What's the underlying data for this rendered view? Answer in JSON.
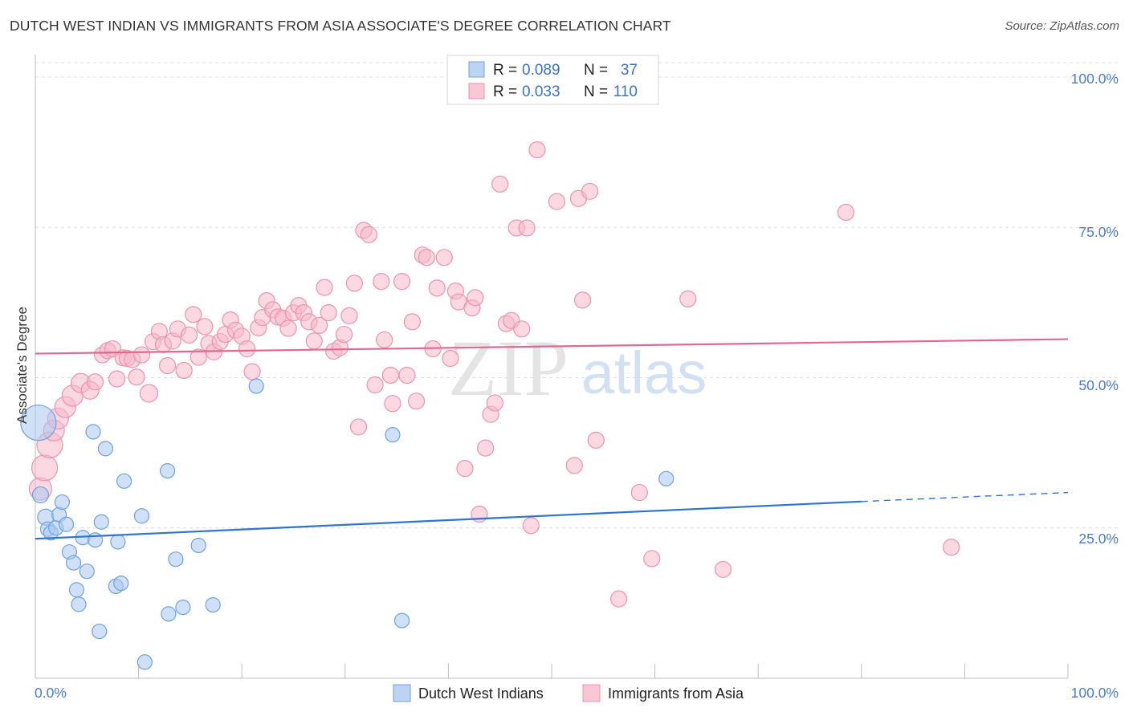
{
  "title": "DUTCH WEST INDIAN VS IMMIGRANTS FROM ASIA ASSOCIATE'S DEGREE CORRELATION CHART",
  "source": "Source: ZipAtlas.com",
  "watermark": {
    "zip": "ZIP",
    "atlas": "atlas"
  },
  "colors": {
    "blue_fill": "#a9c8f0",
    "blue_stroke": "#6fa1df",
    "blue_line": "#2f74d0",
    "pink_fill": "#f7b8cb",
    "pink_stroke": "#eb93ae",
    "pink_line": "#e2688f",
    "axis_label": "#4a7cc9",
    "grid": "#dcdcdc"
  },
  "chart_data": {
    "type": "scatter",
    "xlabel": "",
    "ylabel": "Associate's Degree",
    "xlim": [
      0,
      100
    ],
    "ylim": [
      0,
      100
    ],
    "x_tick_labels": [
      "0.0%",
      "100.0%"
    ],
    "y_ticks": [
      25,
      50,
      75,
      100
    ],
    "y_tick_labels": [
      "25.0%",
      "50.0%",
      "75.0%",
      "100.0%"
    ],
    "grid": true,
    "legend_position": "top-center",
    "stats": [
      {
        "r_label": "R = ",
        "r_value": "0.089",
        "n_label": "N = ",
        "n_value": "37"
      },
      {
        "r_label": "R = ",
        "r_value": "0.033",
        "n_label": "N = ",
        "n_value": "110"
      }
    ],
    "series": [
      {
        "name": "Dutch West Indians",
        "color": "blue",
        "trend": {
          "x0": 0,
          "y0": 23.2,
          "x1": 80,
          "y1": 29.4,
          "dash_to_x": 100,
          "dash_to_y": 30.9
        },
        "points": [
          {
            "x": 0.3,
            "y": 42.5,
            "s": 22
          },
          {
            "x": 0.5,
            "y": 30.5,
            "s": 10
          },
          {
            "x": 1.0,
            "y": 26.8,
            "s": 10
          },
          {
            "x": 1.2,
            "y": 24.8,
            "s": 9
          },
          {
            "x": 1.5,
            "y": 24.2,
            "s": 9
          },
          {
            "x": 2.0,
            "y": 25.0,
            "s": 9
          },
          {
            "x": 2.3,
            "y": 27.2,
            "s": 9
          },
          {
            "x": 2.6,
            "y": 29.3,
            "s": 9
          },
          {
            "x": 3.0,
            "y": 25.6,
            "s": 9
          },
          {
            "x": 3.3,
            "y": 21.0,
            "s": 9
          },
          {
            "x": 3.7,
            "y": 19.2,
            "s": 9
          },
          {
            "x": 4.0,
            "y": 14.7,
            "s": 9
          },
          {
            "x": 4.2,
            "y": 12.3,
            "s": 9
          },
          {
            "x": 4.6,
            "y": 23.4,
            "s": 9
          },
          {
            "x": 5.0,
            "y": 17.8,
            "s": 9
          },
          {
            "x": 5.6,
            "y": 41.0,
            "s": 9
          },
          {
            "x": 5.8,
            "y": 23.0,
            "s": 9
          },
          {
            "x": 6.2,
            "y": 7.8,
            "s": 9
          },
          {
            "x": 6.4,
            "y": 26.0,
            "s": 9
          },
          {
            "x": 6.8,
            "y": 38.2,
            "s": 9
          },
          {
            "x": 7.8,
            "y": 15.3,
            "s": 9
          },
          {
            "x": 8.0,
            "y": 22.7,
            "s": 9
          },
          {
            "x": 8.3,
            "y": 15.8,
            "s": 9
          },
          {
            "x": 8.6,
            "y": 32.8,
            "s": 9
          },
          {
            "x": 10.3,
            "y": 27.0,
            "s": 9
          },
          {
            "x": 10.6,
            "y": 2.7,
            "s": 9
          },
          {
            "x": 12.8,
            "y": 34.5,
            "s": 9
          },
          {
            "x": 12.9,
            "y": 10.7,
            "s": 9
          },
          {
            "x": 13.6,
            "y": 19.8,
            "s": 9
          },
          {
            "x": 14.3,
            "y": 11.8,
            "s": 9
          },
          {
            "x": 15.8,
            "y": 22.1,
            "s": 9
          },
          {
            "x": 17.2,
            "y": 12.2,
            "s": 9
          },
          {
            "x": 21.4,
            "y": 48.6,
            "s": 9
          },
          {
            "x": 34.6,
            "y": 40.5,
            "s": 9
          },
          {
            "x": 35.5,
            "y": 9.6,
            "s": 9
          },
          {
            "x": 61.1,
            "y": 33.2,
            "s": 9
          }
        ]
      },
      {
        "name": "Immigrants from Asia",
        "color": "pink",
        "trend": {
          "x0": 0,
          "y0": 54.0,
          "x1": 100,
          "y1": 56.4
        },
        "points": [
          {
            "x": 0.5,
            "y": 31.5,
            "s": 14
          },
          {
            "x": 0.9,
            "y": 35.0,
            "s": 16
          },
          {
            "x": 1.4,
            "y": 38.8,
            "s": 16
          },
          {
            "x": 1.8,
            "y": 41.2,
            "s": 13
          },
          {
            "x": 2.2,
            "y": 43.2,
            "s": 13
          },
          {
            "x": 2.9,
            "y": 45.1,
            "s": 13
          },
          {
            "x": 3.6,
            "y": 47.0,
            "s": 13
          },
          {
            "x": 4.4,
            "y": 49.1,
            "s": 12
          },
          {
            "x": 5.3,
            "y": 47.9,
            "s": 11
          },
          {
            "x": 5.8,
            "y": 49.3,
            "s": 10
          },
          {
            "x": 6.5,
            "y": 53.8,
            "s": 10
          },
          {
            "x": 7.0,
            "y": 54.5,
            "s": 10
          },
          {
            "x": 7.5,
            "y": 54.8,
            "s": 10
          },
          {
            "x": 7.9,
            "y": 49.8,
            "s": 10
          },
          {
            "x": 8.5,
            "y": 53.3,
            "s": 10
          },
          {
            "x": 8.9,
            "y": 53.2,
            "s": 10
          },
          {
            "x": 9.4,
            "y": 53.0,
            "s": 10
          },
          {
            "x": 9.8,
            "y": 50.1,
            "s": 10
          },
          {
            "x": 10.3,
            "y": 53.8,
            "s": 10
          },
          {
            "x": 11.0,
            "y": 47.4,
            "s": 11
          },
          {
            "x": 11.4,
            "y": 56.0,
            "s": 10
          },
          {
            "x": 12.0,
            "y": 57.7,
            "s": 10
          },
          {
            "x": 12.4,
            "y": 55.5,
            "s": 10
          },
          {
            "x": 12.8,
            "y": 52.0,
            "s": 10
          },
          {
            "x": 13.3,
            "y": 56.1,
            "s": 10
          },
          {
            "x": 13.8,
            "y": 58.1,
            "s": 10
          },
          {
            "x": 14.4,
            "y": 51.2,
            "s": 10
          },
          {
            "x": 14.9,
            "y": 57.1,
            "s": 10
          },
          {
            "x": 15.3,
            "y": 60.5,
            "s": 10
          },
          {
            "x": 15.8,
            "y": 53.4,
            "s": 10
          },
          {
            "x": 16.4,
            "y": 58.5,
            "s": 10
          },
          {
            "x": 16.8,
            "y": 55.7,
            "s": 10
          },
          {
            "x": 17.3,
            "y": 54.3,
            "s": 10
          },
          {
            "x": 17.9,
            "y": 56.0,
            "s": 10
          },
          {
            "x": 18.4,
            "y": 57.2,
            "s": 10
          },
          {
            "x": 18.9,
            "y": 59.6,
            "s": 10
          },
          {
            "x": 19.4,
            "y": 57.9,
            "s": 10
          },
          {
            "x": 20.0,
            "y": 56.9,
            "s": 10
          },
          {
            "x": 20.5,
            "y": 54.8,
            "s": 10
          },
          {
            "x": 21.0,
            "y": 51.0,
            "s": 10
          },
          {
            "x": 21.6,
            "y": 58.3,
            "s": 10
          },
          {
            "x": 22.0,
            "y": 60.0,
            "s": 10
          },
          {
            "x": 22.4,
            "y": 62.8,
            "s": 10
          },
          {
            "x": 23.0,
            "y": 61.3,
            "s": 10
          },
          {
            "x": 23.5,
            "y": 60.1,
            "s": 10
          },
          {
            "x": 24.0,
            "y": 59.9,
            "s": 10
          },
          {
            "x": 24.5,
            "y": 58.2,
            "s": 10
          },
          {
            "x": 25.0,
            "y": 60.8,
            "s": 10
          },
          {
            "x": 25.5,
            "y": 62.0,
            "s": 10
          },
          {
            "x": 26.0,
            "y": 60.8,
            "s": 10
          },
          {
            "x": 26.5,
            "y": 59.3,
            "s": 10
          },
          {
            "x": 27.0,
            "y": 56.1,
            "s": 10
          },
          {
            "x": 27.5,
            "y": 58.7,
            "s": 10
          },
          {
            "x": 28.0,
            "y": 65.0,
            "s": 10
          },
          {
            "x": 28.4,
            "y": 60.8,
            "s": 10
          },
          {
            "x": 28.9,
            "y": 54.4,
            "s": 10
          },
          {
            "x": 29.5,
            "y": 55.0,
            "s": 10
          },
          {
            "x": 29.9,
            "y": 57.2,
            "s": 10
          },
          {
            "x": 30.4,
            "y": 60.3,
            "s": 10
          },
          {
            "x": 30.9,
            "y": 65.7,
            "s": 10
          },
          {
            "x": 31.3,
            "y": 41.8,
            "s": 10
          },
          {
            "x": 31.8,
            "y": 74.5,
            "s": 10
          },
          {
            "x": 32.3,
            "y": 73.8,
            "s": 10
          },
          {
            "x": 32.9,
            "y": 48.8,
            "s": 10
          },
          {
            "x": 33.5,
            "y": 66.0,
            "s": 10
          },
          {
            "x": 33.8,
            "y": 56.3,
            "s": 10
          },
          {
            "x": 34.4,
            "y": 50.4,
            "s": 10
          },
          {
            "x": 34.6,
            "y": 45.7,
            "s": 10
          },
          {
            "x": 35.5,
            "y": 66.0,
            "s": 10
          },
          {
            "x": 36.0,
            "y": 50.4,
            "s": 10
          },
          {
            "x": 36.5,
            "y": 59.3,
            "s": 10
          },
          {
            "x": 36.9,
            "y": 46.1,
            "s": 10
          },
          {
            "x": 37.5,
            "y": 70.4,
            "s": 10
          },
          {
            "x": 37.9,
            "y": 70.0,
            "s": 10
          },
          {
            "x": 38.5,
            "y": 54.8,
            "s": 10
          },
          {
            "x": 38.9,
            "y": 64.9,
            "s": 10
          },
          {
            "x": 39.6,
            "y": 70.0,
            "s": 10
          },
          {
            "x": 40.2,
            "y": 53.2,
            "s": 10
          },
          {
            "x": 40.7,
            "y": 64.4,
            "s": 10
          },
          {
            "x": 41.0,
            "y": 62.6,
            "s": 10
          },
          {
            "x": 41.6,
            "y": 34.9,
            "s": 10
          },
          {
            "x": 42.3,
            "y": 61.6,
            "s": 10
          },
          {
            "x": 42.6,
            "y": 63.3,
            "s": 10
          },
          {
            "x": 43.0,
            "y": 27.3,
            "s": 10
          },
          {
            "x": 43.6,
            "y": 38.3,
            "s": 10
          },
          {
            "x": 44.1,
            "y": 43.9,
            "s": 10
          },
          {
            "x": 44.5,
            "y": 45.8,
            "s": 10
          },
          {
            "x": 45.0,
            "y": 82.2,
            "s": 10
          },
          {
            "x": 45.6,
            "y": 59.0,
            "s": 10
          },
          {
            "x": 46.1,
            "y": 59.5,
            "s": 10
          },
          {
            "x": 46.6,
            "y": 74.9,
            "s": 10
          },
          {
            "x": 47.1,
            "y": 58.1,
            "s": 10
          },
          {
            "x": 47.6,
            "y": 74.9,
            "s": 10
          },
          {
            "x": 48.0,
            "y": 25.4,
            "s": 10
          },
          {
            "x": 48.6,
            "y": 87.9,
            "s": 10
          },
          {
            "x": 50.5,
            "y": 79.3,
            "s": 10
          },
          {
            "x": 52.2,
            "y": 35.4,
            "s": 10
          },
          {
            "x": 52.6,
            "y": 79.8,
            "s": 10
          },
          {
            "x": 53.0,
            "y": 62.9,
            "s": 10
          },
          {
            "x": 53.7,
            "y": 81.0,
            "s": 10
          },
          {
            "x": 54.3,
            "y": 39.6,
            "s": 10
          },
          {
            "x": 56.5,
            "y": 13.2,
            "s": 10
          },
          {
            "x": 58.5,
            "y": 30.9,
            "s": 10
          },
          {
            "x": 59.7,
            "y": 19.9,
            "s": 10
          },
          {
            "x": 63.2,
            "y": 63.1,
            "s": 10
          },
          {
            "x": 66.6,
            "y": 18.1,
            "s": 10
          },
          {
            "x": 78.5,
            "y": 77.5,
            "s": 10
          },
          {
            "x": 88.7,
            "y": 21.8,
            "s": 10
          }
        ]
      }
    ]
  }
}
